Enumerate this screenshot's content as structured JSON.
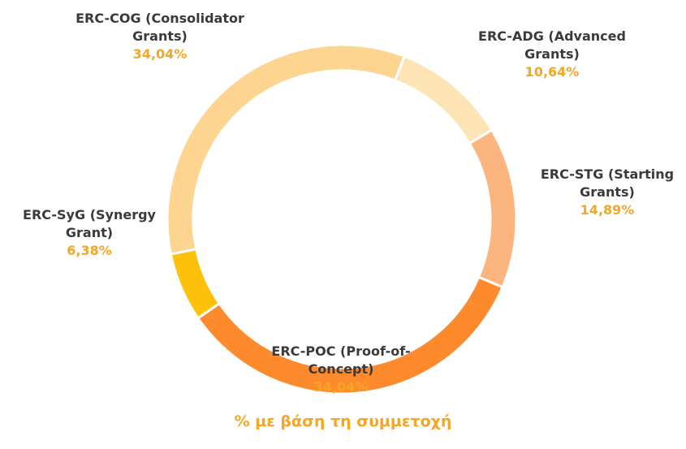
{
  "chart_data": {
    "type": "donut",
    "categories": [
      "ERC-ADG (Advanced Grants)",
      "ERC-STG (Starting Grants)",
      "ERC-POC (Proof-of-Concept)",
      "ERC-SyG (Synergy Grant)",
      "ERC-COG (Consolidator Grants)"
    ],
    "values": [
      10.64,
      14.89,
      34.04,
      6.38,
      34.04
    ],
    "value_labels": [
      "10,64%",
      "14,89%",
      "34,04%",
      "6,38%",
      "34,04%"
    ],
    "colors": [
      "#fde4b5",
      "#fdb57f",
      "#fd8a2c",
      "#fdc00b",
      "#fdd590"
    ],
    "title": "% με βάση τη συμμετοχή"
  }
}
